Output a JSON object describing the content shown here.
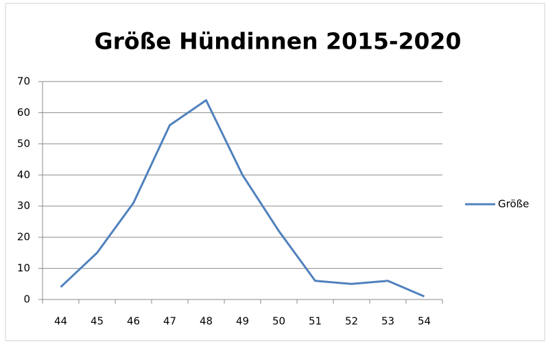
{
  "chart_data": {
    "type": "line",
    "title": "Größe Hündinnen 2015-2020",
    "categories": [
      "44",
      "45",
      "46",
      "47",
      "48",
      "49",
      "50",
      "51",
      "52",
      "53",
      "54"
    ],
    "series": [
      {
        "name": "Größe",
        "color": "#4f81bd",
        "values": [
          4,
          15,
          31,
          56,
          64,
          40,
          22,
          6,
          5,
          6,
          1
        ]
      }
    ],
    "ylim": [
      0,
      70
    ],
    "yticks": [
      0,
      10,
      20,
      30,
      40,
      50,
      60,
      70
    ],
    "grid": true,
    "legend": "right"
  }
}
